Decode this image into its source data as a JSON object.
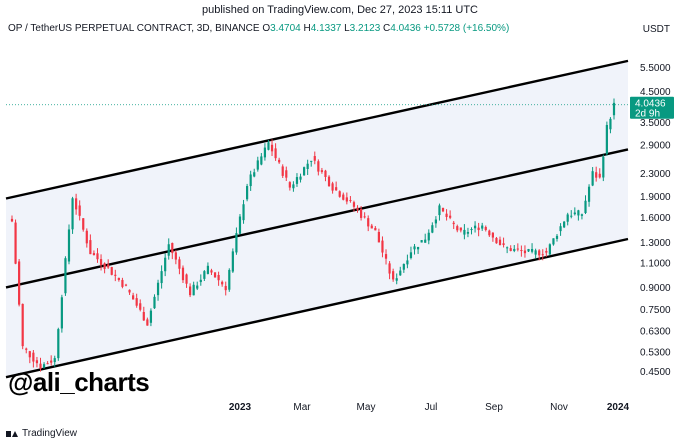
{
  "header": {
    "published": "published on TradingView.com, Dec 27, 2023 15:11 UTC"
  },
  "legend": {
    "symbol": "OP / TetherUS PERPETUAL CONTRACT, 3D, BINANCE",
    "o_label": "O",
    "o_value": "3.4704",
    "h_label": "H",
    "h_value": "4.1337",
    "l_label": "L",
    "l_value": "3.2123",
    "c_label": "C",
    "c_value": "4.0436",
    "change": "+0.5728 (+16.50%)"
  },
  "currency": "USDT",
  "watermark": "@ali_charts",
  "footer": {
    "brand": "TradingView"
  },
  "colors": {
    "up": "#089981",
    "down": "#f23645",
    "channel_fill": "#f0f3fa",
    "channel_line": "#000000",
    "last_price_tag": "#089981"
  },
  "chart_data": {
    "type": "candlestick",
    "title": "OP / TetherUS PERPETUAL CONTRACT, 3D, BINANCE",
    "y_scale": "log",
    "ylim": [
      0.4,
      7.0
    ],
    "y_ticks": [
      "5.5000",
      "4.5000",
      "3.5000",
      "2.9000",
      "2.3000",
      "1.9000",
      "1.6000",
      "1.3000",
      "1.1000",
      "0.9000",
      "0.7500",
      "0.6300",
      "0.5300",
      "0.4500"
    ],
    "x_ticks": [
      "2023",
      "Mar",
      "May",
      "Jul",
      "Sep",
      "Nov",
      "2024"
    ],
    "last_price": {
      "value": "4.0436",
      "countdown": "2d 9h"
    },
    "channel": {
      "upper": {
        "start": 1.87,
        "end": 5.8
      },
      "middle": {
        "start": 0.9,
        "end": 2.8
      },
      "lower": {
        "start": 0.43,
        "end": 1.34
      }
    },
    "anchors": [
      [
        0,
        1.55
      ],
      [
        3,
        0.55
      ],
      [
        8,
        0.47
      ],
      [
        12,
        0.5
      ],
      [
        17,
        1.9
      ],
      [
        22,
        1.2
      ],
      [
        27,
        1.05
      ],
      [
        32,
        0.9
      ],
      [
        38,
        0.67
      ],
      [
        44,
        1.28
      ],
      [
        50,
        0.86
      ],
      [
        55,
        1.05
      ],
      [
        60,
        0.9
      ],
      [
        66,
        2.1
      ],
      [
        72,
        2.95
      ],
      [
        78,
        2.05
      ],
      [
        84,
        2.6
      ],
      [
        90,
        2.05
      ],
      [
        96,
        1.75
      ],
      [
        102,
        1.42
      ],
      [
        107,
        0.94
      ],
      [
        112,
        1.22
      ],
      [
        116,
        1.35
      ],
      [
        120,
        1.72
      ],
      [
        126,
        1.4
      ],
      [
        132,
        1.5
      ],
      [
        138,
        1.25
      ],
      [
        144,
        1.2
      ],
      [
        150,
        1.2
      ],
      [
        156,
        1.65
      ],
      [
        160,
        1.65
      ],
      [
        163,
        2.3
      ],
      [
        165,
        2.2
      ],
      [
        167,
        3.35
      ],
      [
        169,
        4.04
      ]
    ]
  }
}
